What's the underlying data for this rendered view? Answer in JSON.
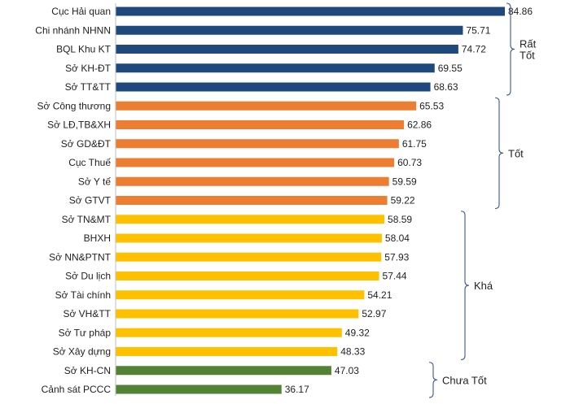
{
  "chart_data": {
    "type": "bar",
    "orientation": "horizontal",
    "title": "",
    "xlabel": "",
    "ylabel": "",
    "xlim": [
      0,
      84.86
    ],
    "grid": false,
    "categories": [
      "Cục Hải quan",
      "Chi nhánh NHNN",
      "BQL Khu KT",
      "Sở KH-ĐT",
      "Sở TT&TT",
      "Sở Công thương",
      "Sở LĐ,TB&XH",
      "Sở GD&ĐT",
      "Cục Thuế",
      "Sở Y tế",
      "Sở GTVT",
      "Sở TN&MT",
      "BHXH",
      "Sở NN&PTNT",
      "Sở Du lịch",
      "Sở Tài chính",
      "Sở VH&TT",
      "Sở Tư pháp",
      "Sở Xây dựng",
      "Sở KH-CN",
      "Cảnh sát PCCC"
    ],
    "values": [
      84.86,
      75.71,
      74.72,
      69.55,
      68.63,
      65.53,
      62.86,
      61.75,
      60.73,
      59.59,
      59.22,
      58.59,
      58.04,
      57.93,
      57.44,
      54.21,
      52.97,
      49.32,
      48.33,
      47.03,
      36.17
    ],
    "value_labels": [
      "84.86",
      "75.71",
      "74.72",
      "69.55",
      "68.63",
      "65.53",
      "62.86",
      "61.75",
      "60.73",
      "59.59",
      "59.22",
      "58.59",
      "58.04",
      "57.93",
      "57.44",
      "54.21",
      "52.97",
      "49.32",
      "48.33",
      "47.03",
      "36.17"
    ],
    "groups": [
      {
        "label_lines": [
          "Rất",
          "Tốt"
        ],
        "start": 0,
        "end": 4,
        "color": "#1f497d"
      },
      {
        "label_lines": [
          "Tốt"
        ],
        "start": 5,
        "end": 10,
        "color": "#ed7d31"
      },
      {
        "label_lines": [
          "Khá"
        ],
        "start": 11,
        "end": 18,
        "color": "#ffc000"
      },
      {
        "label_lines": [
          "Chưa Tốt"
        ],
        "start": 19,
        "end": 20,
        "color": "#548235"
      }
    ],
    "bracket_color": "#3b5a8c"
  }
}
